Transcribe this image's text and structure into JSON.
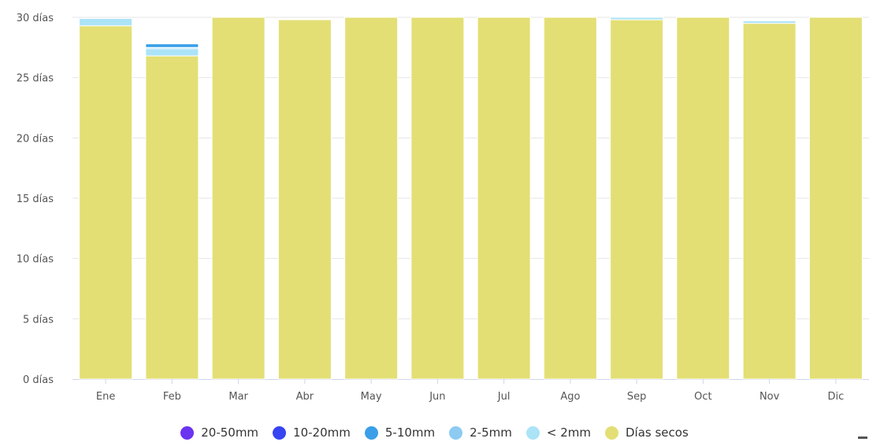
{
  "chart_data": {
    "type": "bar",
    "stacked": true,
    "categories": [
      "Ene",
      "Feb",
      "Mar",
      "Abr",
      "May",
      "Jun",
      "Jul",
      "Ago",
      "Sep",
      "Oct",
      "Nov",
      "Dic"
    ],
    "ylim": [
      0,
      30
    ],
    "yticks": [
      "0 días",
      "5 días",
      "10 días",
      "15 días",
      "20 días",
      "25 días",
      "30 días"
    ],
    "grid": true,
    "legend_position": "bottom",
    "series": [
      {
        "name": "Días secos",
        "color": "#e3df75",
        "values": [
          29.3,
          26.8,
          30,
          29.8,
          30,
          30,
          30,
          30,
          29.8,
          30,
          29.5,
          30
        ]
      },
      {
        "name": "< 2mm",
        "color": "#abe3f7",
        "values": [
          0.6,
          0.6,
          0,
          0,
          0,
          0,
          0,
          0,
          0.2,
          0,
          0.2,
          0
        ]
      },
      {
        "name": "2-5mm",
        "color": "#8dcbf2",
        "values": [
          0,
          0.1,
          0,
          0,
          0,
          0,
          0,
          0,
          0,
          0,
          0,
          0
        ]
      },
      {
        "name": "5-10mm",
        "color": "#3a9fe8",
        "values": [
          0,
          0.3,
          0,
          0,
          0,
          0,
          0,
          0,
          0,
          0,
          0,
          0
        ]
      },
      {
        "name": "10-20mm",
        "color": "#3644f2",
        "values": [
          0,
          0,
          0,
          0,
          0,
          0,
          0,
          0,
          0,
          0,
          0,
          0
        ]
      },
      {
        "name": "20-50mm",
        "color": "#6b34f0",
        "values": [
          0,
          0,
          0,
          0,
          0,
          0,
          0,
          0,
          0,
          0,
          0,
          0
        ]
      }
    ]
  },
  "legend": {
    "items": [
      {
        "label": "20-50mm",
        "color": "#6b34f0"
      },
      {
        "label": "10-20mm",
        "color": "#3644f2"
      },
      {
        "label": "5-10mm",
        "color": "#3a9fe8"
      },
      {
        "label": "2-5mm",
        "color": "#8dcbf2"
      },
      {
        "label": "< 2mm",
        "color": "#abe3f7"
      },
      {
        "label": "Días secos",
        "color": "#e3df75"
      }
    ]
  }
}
